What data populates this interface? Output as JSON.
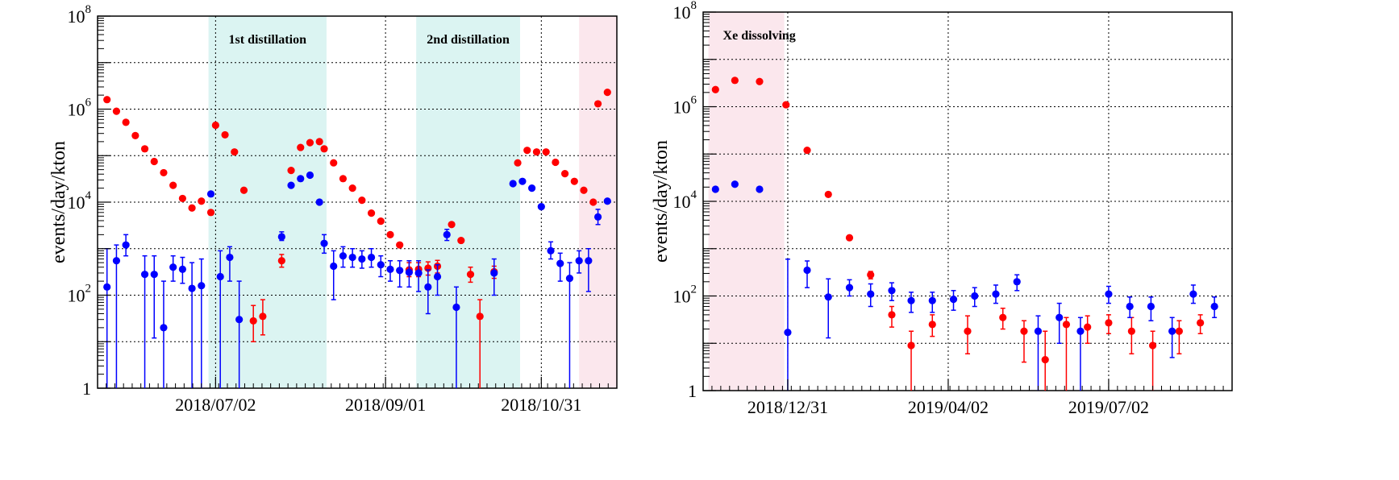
{
  "chart_data": [
    {
      "type": "scatter",
      "ylabel": "events/day/kton",
      "yscale": "log",
      "ylim": [
        1,
        100000000
      ],
      "xlim": [
        0,
        110
      ],
      "ytick_labels": [
        "1",
        "10",
        "10",
        "10",
        "10"
      ],
      "ytick_sups": [
        "",
        "2",
        "4",
        "6",
        "8"
      ],
      "xtick_labels": [
        "2018/07/02",
        "2018/09/01",
        "2018/10/31"
      ],
      "xtick_days": [
        25,
        61,
        94
      ],
      "grid": true,
      "bands": [
        {
          "label": "1st distillation",
          "x0": 23.5,
          "x1": 48.5,
          "color": "#7fd8d0"
        },
        {
          "label": "2nd distillation",
          "x0": 67.5,
          "x1": 89.5,
          "color": "#7fd8d0"
        },
        {
          "label": "",
          "x0": 102,
          "x1": 110,
          "color": "#f2a8c0"
        }
      ],
      "series": [
        {
          "color": "#ff0000",
          "points": [
            [
              2,
              1600000,
              0,
              0
            ],
            [
              4,
              900000,
              0,
              0
            ],
            [
              6,
              520000,
              0,
              0
            ],
            [
              8,
              270000,
              0,
              0
            ],
            [
              10,
              140000,
              0,
              0
            ],
            [
              12,
              75000,
              0,
              0
            ],
            [
              14,
              43000,
              0,
              0
            ],
            [
              16,
              23000,
              0,
              0
            ],
            [
              18,
              12000,
              0,
              0
            ],
            [
              20,
              7500,
              0,
              0
            ],
            [
              22,
              10500,
              0,
              0
            ],
            [
              24,
              6000,
              0,
              0
            ],
            [
              25,
              450000,
              0,
              0
            ],
            [
              27,
              280000,
              0,
              0
            ],
            [
              29,
              120000,
              0,
              0
            ],
            [
              31,
              18000,
              0,
              0
            ],
            [
              33,
              28,
              60,
              10
            ],
            [
              35,
              35,
              80,
              14
            ],
            [
              39,
              550,
              750,
              400
            ],
            [
              41,
              48000,
              0,
              0
            ],
            [
              43,
              150000,
              0,
              0
            ],
            [
              45,
              190000,
              0,
              0
            ],
            [
              47,
              200000,
              0,
              0
            ],
            [
              48,
              140000,
              0,
              0
            ],
            [
              50,
              70000,
              0,
              0
            ],
            [
              52,
              32000,
              0,
              0
            ],
            [
              54,
              20000,
              0,
              0
            ],
            [
              56,
              11000,
              0,
              0
            ],
            [
              58,
              5800,
              0,
              0
            ],
            [
              60,
              3900,
              0,
              0
            ],
            [
              62,
              2000,
              0,
              0
            ],
            [
              64,
              1200,
              0,
              0
            ],
            [
              66,
              350,
              500,
              250
            ],
            [
              68,
              360,
              500,
              250
            ],
            [
              70,
              380,
              520,
              270
            ],
            [
              72,
              420,
              560,
              300
            ],
            [
              75,
              3300,
              0,
              0
            ],
            [
              77,
              1500,
              0,
              0
            ],
            [
              79,
              280,
              400,
              190
            ],
            [
              81,
              35,
              80,
              1
            ],
            [
              84,
              320,
              420,
              230
            ],
            [
              89,
              70000,
              0,
              0
            ],
            [
              91,
              130000,
              0,
              0
            ],
            [
              93,
              120000,
              0,
              0
            ],
            [
              95,
              120000,
              0,
              0
            ],
            [
              97,
              72000,
              0,
              0
            ],
            [
              99,
              41000,
              0,
              0
            ],
            [
              101,
              28000,
              0,
              0
            ],
            [
              103,
              18000,
              0,
              0
            ],
            [
              105,
              10000,
              0,
              0
            ],
            [
              106,
              1300000,
              0,
              0
            ],
            [
              108,
              2300000,
              0,
              0
            ]
          ]
        },
        {
          "color": "#0000ff",
          "points": [
            [
              2,
              150,
              1000,
              1
            ],
            [
              4,
              550,
              1200,
              1
            ],
            [
              6,
              1200,
              2000,
              700
            ],
            [
              10,
              280,
              700,
              1
            ],
            [
              12,
              280,
              700,
              12
            ],
            [
              14,
              20,
              200,
              1
            ],
            [
              16,
              400,
              700,
              200
            ],
            [
              18,
              360,
              650,
              180
            ],
            [
              20,
              140,
              500,
              1
            ],
            [
              22,
              160,
              600,
              1
            ],
            [
              24,
              15000,
              0,
              0
            ],
            [
              26,
              250,
              900,
              1
            ],
            [
              28,
              650,
              1100,
              200
            ],
            [
              30,
              30,
              200,
              1
            ],
            [
              39,
              1800,
              2300,
              1500
            ],
            [
              41,
              23000,
              0,
              0
            ],
            [
              43,
              32000,
              0,
              0
            ],
            [
              45,
              38000,
              0,
              0
            ],
            [
              47,
              10000,
              0,
              0
            ],
            [
              48,
              1300,
              2000,
              800
            ],
            [
              50,
              420,
              900,
              80
            ],
            [
              52,
              700,
              1100,
              400
            ],
            [
              54,
              650,
              1000,
              400
            ],
            [
              56,
              600,
              900,
              380
            ],
            [
              58,
              650,
              1000,
              400
            ],
            [
              60,
              450,
              700,
              250
            ],
            [
              62,
              360,
              550,
              200
            ],
            [
              64,
              340,
              550,
              150
            ],
            [
              66,
              310,
              550,
              150
            ],
            [
              68,
              300,
              550,
              120
            ],
            [
              70,
              150,
              350,
              40
            ],
            [
              72,
              250,
              450,
              100
            ],
            [
              74,
              2000,
              2600,
              1500
            ],
            [
              76,
              55,
              150,
              1
            ],
            [
              84,
              300,
              600,
              100
            ],
            [
              88,
              25000,
              0,
              0
            ],
            [
              90,
              28000,
              0,
              0
            ],
            [
              92,
              20000,
              0,
              0
            ],
            [
              94,
              8000,
              0,
              0
            ],
            [
              96,
              900,
              1400,
              600
            ],
            [
              98,
              480,
              800,
              200
            ],
            [
              100,
              230,
              500,
              1
            ],
            [
              102,
              550,
              900,
              300
            ],
            [
              104,
              550,
              1000,
              120
            ],
            [
              106,
              4800,
              7000,
              3300
            ],
            [
              108,
              10500,
              0,
              0
            ]
          ]
        }
      ]
    },
    {
      "type": "scatter",
      "ylabel": "events/day/kton",
      "yscale": "log",
      "ylim": [
        1,
        100000000
      ],
      "xlim": [
        0,
        300
      ],
      "ytick_labels": [
        "1",
        "10",
        "10",
        "10",
        "10"
      ],
      "ytick_sups": [
        "",
        "2",
        "4",
        "6",
        "8"
      ],
      "xtick_labels": [
        "2018/12/31",
        "2019/04/02",
        "2019/07/02"
      ],
      "xtick_days": [
        48,
        139,
        230
      ],
      "grid": true,
      "bands": [
        {
          "label": "Xe dissolving",
          "x0": 3,
          "x1": 46,
          "color": "#f2a8c0"
        }
      ],
      "series": [
        {
          "color": "#ff0000",
          "points": [
            [
              7,
              2300000,
              0,
              0
            ],
            [
              18,
              3600000,
              0,
              0
            ],
            [
              32,
              3400000,
              0,
              0
            ],
            [
              47,
              1100000,
              0,
              0
            ],
            [
              59,
              120000,
              0,
              0
            ],
            [
              71,
              14000,
              0,
              0
            ],
            [
              83,
              1700,
              0,
              0
            ],
            [
              95,
              280,
              330,
              230
            ],
            [
              107,
              40,
              60,
              22
            ],
            [
              118,
              9,
              18,
              1
            ],
            [
              130,
              25,
              40,
              14
            ],
            [
              150,
              18,
              38,
              6
            ],
            [
              170,
              35,
              55,
              20
            ],
            [
              182,
              18,
              30,
              4
            ],
            [
              194,
              4.5,
              18,
              1
            ],
            [
              206,
              25,
              35,
              1
            ],
            [
              218,
              22,
              38,
              10
            ],
            [
              230,
              27,
              40,
              16
            ],
            [
              243,
              18,
              35,
              6
            ],
            [
              255,
              9,
              18,
              1
            ],
            [
              270,
              18,
              30,
              6
            ],
            [
              282,
              27,
              40,
              16
            ]
          ]
        },
        {
          "color": "#0000ff",
          "points": [
            [
              7,
              18000,
              0,
              0
            ],
            [
              18,
              23000,
              0,
              0
            ],
            [
              32,
              18000,
              0,
              0
            ],
            [
              48,
              17,
              600,
              1
            ],
            [
              59,
              350,
              550,
              150
            ],
            [
              71,
              95,
              230,
              13
            ],
            [
              83,
              150,
              220,
              100
            ],
            [
              95,
              110,
              180,
              60
            ],
            [
              107,
              130,
              190,
              80
            ],
            [
              118,
              80,
              120,
              45
            ],
            [
              130,
              80,
              120,
              45
            ],
            [
              142,
              85,
              130,
              50
            ],
            [
              154,
              100,
              150,
              60
            ],
            [
              166,
              110,
              170,
              70
            ],
            [
              178,
              200,
              280,
              130
            ],
            [
              190,
              18,
              38,
              1
            ],
            [
              202,
              35,
              70,
              10
            ],
            [
              214,
              18,
              35,
              1
            ],
            [
              230,
              110,
              160,
              70
            ],
            [
              242,
              60,
              95,
              35
            ],
            [
              254,
              60,
              95,
              30
            ],
            [
              266,
              18,
              35,
              5
            ],
            [
              278,
              110,
              170,
              70
            ],
            [
              290,
              60,
              95,
              35
            ]
          ]
        }
      ]
    }
  ]
}
